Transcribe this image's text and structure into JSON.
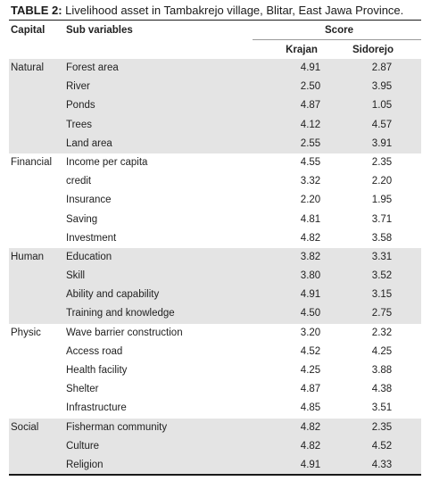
{
  "caption": {
    "label": "TABLE 2:",
    "text": " Livelihood asset in Tambakrejo village, Blitar, East Jawa Province."
  },
  "header": {
    "capital": "Capital",
    "sub_variables": "Sub variables",
    "score": "Score",
    "krajan": "Krajan",
    "sidorejo": "Sidorejo"
  },
  "groups": [
    {
      "capital": "Natural",
      "shaded": true,
      "rows": [
        {
          "sub": "Forest area",
          "krajan": "4.91",
          "sidorejo": "2.87"
        },
        {
          "sub": "River",
          "krajan": "2.50",
          "sidorejo": "3.95"
        },
        {
          "sub": "Ponds",
          "krajan": "4.87",
          "sidorejo": "1.05"
        },
        {
          "sub": "Trees",
          "krajan": "4.12",
          "sidorejo": "4.57"
        },
        {
          "sub": "Land area",
          "krajan": "2.55",
          "sidorejo": "3.91"
        }
      ]
    },
    {
      "capital": "Financial",
      "shaded": false,
      "rows": [
        {
          "sub": "Income per capita",
          "krajan": "4.55",
          "sidorejo": "2.35"
        },
        {
          "sub": "credit",
          "krajan": "3.32",
          "sidorejo": "2.20"
        },
        {
          "sub": "Insurance",
          "krajan": "2.20",
          "sidorejo": "1.95"
        },
        {
          "sub": "Saving",
          "krajan": "4.81",
          "sidorejo": "3.71"
        },
        {
          "sub": "Investment",
          "krajan": "4.82",
          "sidorejo": "3.58"
        }
      ]
    },
    {
      "capital": "Human",
      "shaded": true,
      "rows": [
        {
          "sub": "Education",
          "krajan": "3.82",
          "sidorejo": "3.31"
        },
        {
          "sub": "Skill",
          "krajan": "3.80",
          "sidorejo": "3.52"
        },
        {
          "sub": "Ability and capability",
          "krajan": "4.91",
          "sidorejo": "3.15"
        },
        {
          "sub": "Training and knowledge",
          "krajan": "4.50",
          "sidorejo": "2.75"
        }
      ]
    },
    {
      "capital": "Physic",
      "shaded": false,
      "rows": [
        {
          "sub": "Wave barrier construction",
          "krajan": "3.20",
          "sidorejo": "2.32"
        },
        {
          "sub": "Access road",
          "krajan": "4.52",
          "sidorejo": "4.25"
        },
        {
          "sub": "Health facility",
          "krajan": "4.25",
          "sidorejo": "3.88"
        },
        {
          "sub": "Shelter",
          "krajan": "4.87",
          "sidorejo": "4.38"
        },
        {
          "sub": "Infrastructure",
          "krajan": "4.85",
          "sidorejo": "3.51"
        }
      ]
    },
    {
      "capital": "Social",
      "shaded": true,
      "rows": [
        {
          "sub": "Fisherman community",
          "krajan": "4.82",
          "sidorejo": "2.35"
        },
        {
          "sub": "Culture",
          "krajan": "4.82",
          "sidorejo": "4.52"
        },
        {
          "sub": "Religion",
          "krajan": "4.91",
          "sidorejo": "4.33"
        }
      ]
    }
  ]
}
